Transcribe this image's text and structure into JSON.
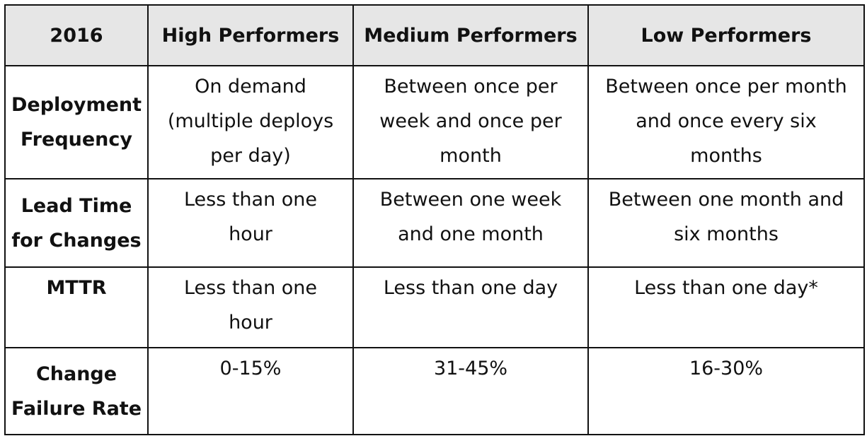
{
  "table": {
    "headers": [
      "2016",
      "High Performers",
      "Medium Performers",
      "Low Performers"
    ],
    "rows": [
      {
        "label": [
          "Deployment",
          "Frequency"
        ],
        "high": [
          "On demand",
          "(multiple deploys",
          "per day)"
        ],
        "medium": [
          "Between once per",
          "week and once per",
          "month"
        ],
        "low": [
          "Between once per month",
          "and once every six",
          "months"
        ]
      },
      {
        "label": [
          "Lead Time",
          "for Changes"
        ],
        "high": [
          "Less than one",
          "hour"
        ],
        "medium": [
          "Between one week",
          "and one month"
        ],
        "low": [
          "Between one month and",
          "six months"
        ]
      },
      {
        "label": [
          "MTTR"
        ],
        "high": [
          "Less than one",
          "hour"
        ],
        "medium": [
          "Less than one day"
        ],
        "low": [
          "Less than one day*"
        ]
      },
      {
        "label": [
          "Change",
          "Failure Rate"
        ],
        "high": [
          "0-15%"
        ],
        "medium": [
          "31-45%"
        ],
        "low": [
          "16-30%"
        ]
      }
    ]
  }
}
